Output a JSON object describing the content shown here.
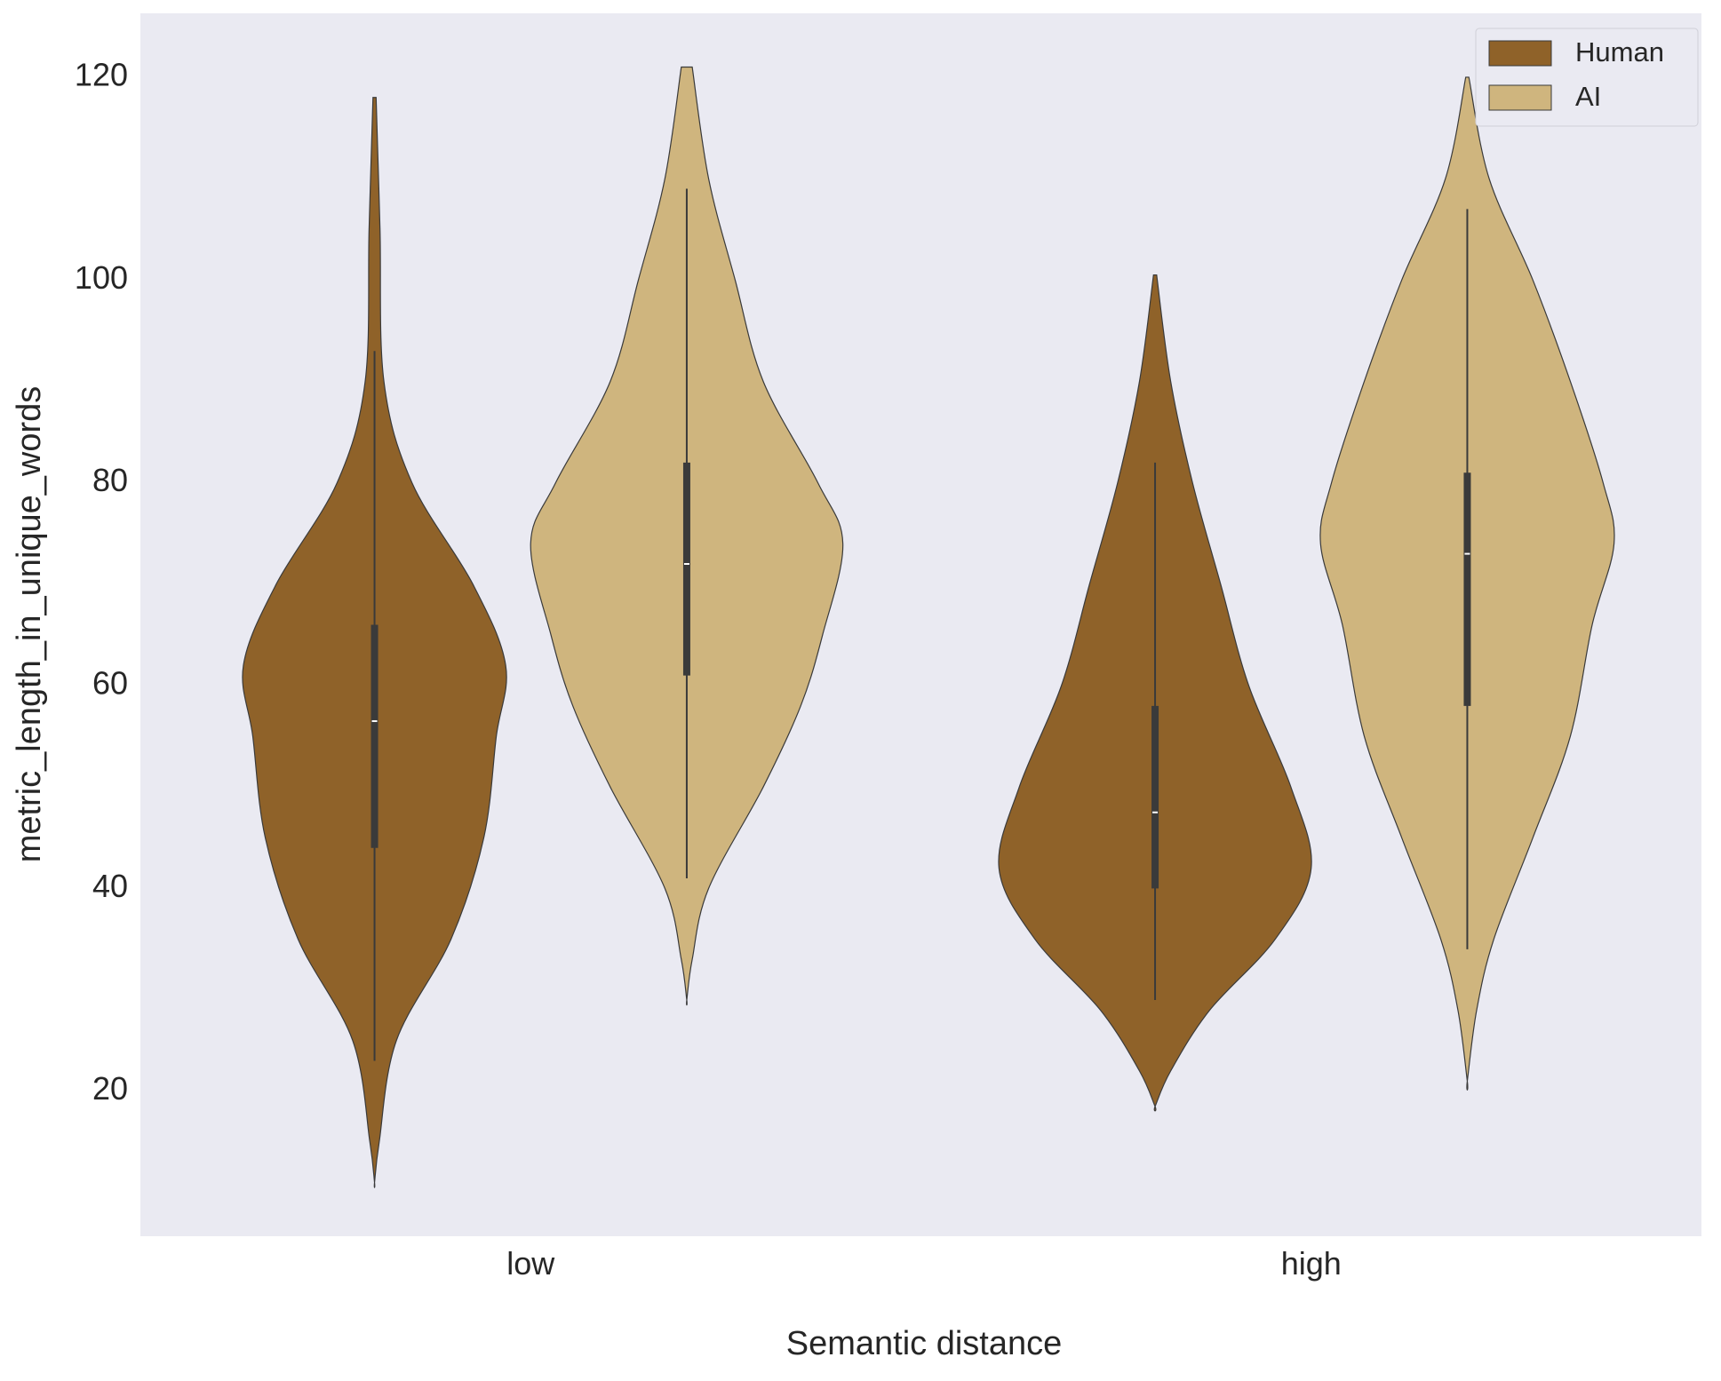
{
  "chart_data": {
    "type": "violin",
    "x_label": "Semantic distance",
    "y_label": "metric_length_in_unique_words",
    "categories": [
      "low",
      "high"
    ],
    "ylim": [
      5.7,
      126.3
    ],
    "yticks": [
      20,
      40,
      60,
      80,
      100,
      120
    ],
    "grid": false,
    "legend": "upper right",
    "series": [
      {
        "name": "Human",
        "color": "#8f6229",
        "violins": [
          {
            "kde_y": [
              118,
              105,
              90,
              80,
              70,
              62,
              55,
              45,
              35,
              25,
              15,
              11
            ],
            "kde_density": [
              0.01,
              0.035,
              0.06,
              0.24,
              0.63,
              0.84,
              0.78,
              0.7,
              0.49,
              0.14,
              0.03,
              0
            ],
            "whisker_low": 23,
            "q1": 44,
            "median": 56.5,
            "q3": 66,
            "whisker_high": 93
          },
          {
            "kde_y": [
              100.5,
              90,
              80,
              70,
              60,
              50,
              42,
              35,
              28,
              22,
              18.5
            ],
            "kde_density": [
              0.01,
              0.1,
              0.24,
              0.42,
              0.6,
              0.87,
              1,
              0.77,
              0.35,
              0.1,
              0
            ],
            "whisker_low": 29,
            "q1": 40,
            "median": 47.5,
            "q3": 58,
            "whisker_high": 82
          }
        ]
      },
      {
        "name": "AI",
        "color": "#cfb57e",
        "violins": [
          {
            "kde_y": [
              121,
              110,
              100,
              90,
              80,
              74,
              65,
              58,
              50,
              40,
              33,
              29
            ],
            "kde_density": [
              0.035,
              0.14,
              0.31,
              0.49,
              0.84,
              1,
              0.87,
              0.73,
              0.49,
              0.14,
              0.035,
              0
            ],
            "whisker_low": 41,
            "q1": 61,
            "median": 72,
            "q3": 82,
            "whisker_high": 109
          },
          {
            "kde_y": [
              120,
              110,
              100,
              90,
              80,
              74,
              66,
              55,
              45,
              35,
              28,
              21
            ],
            "kde_density": [
              0.01,
              0.14,
              0.42,
              0.66,
              0.87,
              0.94,
              0.8,
              0.66,
              0.42,
              0.17,
              0.06,
              0
            ],
            "whisker_low": 34,
            "q1": 58,
            "median": 73,
            "q3": 81,
            "whisker_high": 107
          }
        ]
      }
    ]
  }
}
